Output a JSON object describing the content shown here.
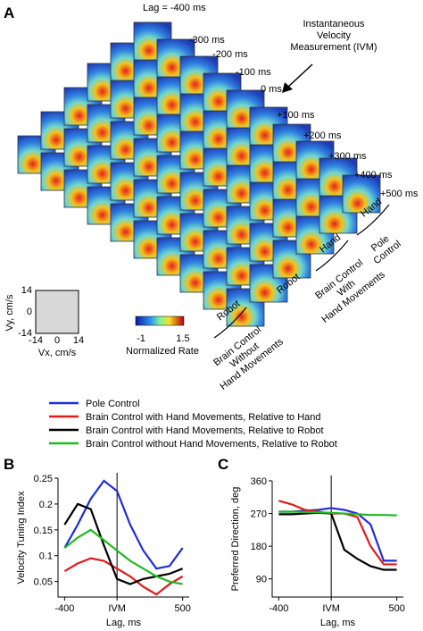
{
  "panel_a": {
    "label": "A",
    "lag_labels": [
      "Lag = -400 ms",
      "-300 ms",
      "-200 ms",
      "-100 ms",
      "0 ms",
      "+100 ms",
      "+200 ms",
      "+300 ms",
      "+400 ms",
      "+500 ms"
    ],
    "ivm": [
      "Instantaneous",
      "Velocity",
      "Measurement (IVM)"
    ],
    "conditions": [
      {
        "ref": "Robot",
        "name": [
          "Brain Control",
          "Without",
          "Hand Movements"
        ]
      },
      {
        "ref": "Robot",
        "name": [
          "Brain Control",
          "With",
          "Hand Movements"
        ]
      },
      {
        "ref": "Hand",
        "name": [
          "Brain Control",
          "With",
          "Hand Movements"
        ]
      },
      {
        "ref": "Hand",
        "name": [
          "Pole",
          "Control"
        ]
      }
    ],
    "colorbar": {
      "min": "-1",
      "max": "1.5",
      "label": "Normalized Rate"
    },
    "velocity_axes": {
      "ticks": [
        "14",
        "0",
        "-14"
      ],
      "y_label": "Vy, cm/s",
      "x_label": "Vx, cm/s"
    }
  },
  "chart_data": [
    {
      "type": "line",
      "title": "B",
      "x_label": "Lag, ms",
      "y_label": "Velocity Tuning Index",
      "x": [
        -400,
        -300,
        -200,
        -100,
        0,
        100,
        200,
        300,
        400,
        500
      ],
      "xlim": [
        -450,
        550
      ],
      "xticks": [
        -400,
        {
          "value": 0,
          "label": "IVM"
        },
        500
      ],
      "ylim": [
        0.02,
        0.25
      ],
      "yticks": [
        0.05,
        0.1,
        0.15,
        0.2,
        0.25
      ],
      "series": [
        {
          "name": "Pole Control",
          "color": "#1f2ed8",
          "values": [
            0.115,
            0.16,
            0.21,
            0.245,
            0.225,
            0.16,
            0.11,
            0.075,
            0.08,
            0.115
          ]
        },
        {
          "name": "Brain Control with Hand Movements, Relative to Hand",
          "color": "#e01b1b",
          "values": [
            0.07,
            0.085,
            0.095,
            0.09,
            0.075,
            0.06,
            0.04,
            0.025,
            0.045,
            0.06
          ]
        },
        {
          "name": "Brain Control with Hand Movements, Relative to Robot",
          "color": "#000000",
          "values": [
            0.16,
            0.2,
            0.19,
            0.12,
            0.055,
            0.045,
            0.055,
            0.06,
            0.065,
            0.075
          ]
        },
        {
          "name": "Brain Control without Hand Movements, Relative to Robot",
          "color": "#22b822",
          "values": [
            0.115,
            0.135,
            0.15,
            0.13,
            0.11,
            0.09,
            0.075,
            0.06,
            0.05,
            0.045
          ]
        }
      ]
    },
    {
      "type": "line",
      "title": "C",
      "x_label": "Lag, ms",
      "y_label": "Preferred Direction, deg",
      "x": [
        -400,
        -300,
        -200,
        -100,
        0,
        100,
        200,
        300,
        400,
        500
      ],
      "xlim": [
        -450,
        550
      ],
      "xticks": [
        -400,
        {
          "value": 0,
          "label": "IVM"
        },
        500
      ],
      "ylim": [
        40,
        360
      ],
      "yticks": [
        90,
        180,
        270,
        360
      ],
      "series": [
        {
          "name": "Pole Control",
          "color": "#1f2ed8",
          "values": [
            275,
            275,
            278,
            280,
            285,
            280,
            270,
            240,
            140,
            140
          ]
        },
        {
          "name": "Brain Control with Hand Movements, Relative to Hand",
          "color": "#e01b1b",
          "values": [
            305,
            295,
            280,
            275,
            270,
            270,
            260,
            180,
            130,
            130
          ]
        },
        {
          "name": "Brain Control with Hand Movements, Relative to Robot",
          "color": "#000000",
          "values": [
            268,
            268,
            270,
            272,
            270,
            170,
            145,
            125,
            115,
            115
          ]
        },
        {
          "name": "Brain Control without Hand Movements, Relative to Robot",
          "color": "#22b822",
          "values": [
            275,
            275,
            274,
            273,
            272,
            270,
            268,
            266,
            266,
            265
          ]
        }
      ]
    }
  ]
}
